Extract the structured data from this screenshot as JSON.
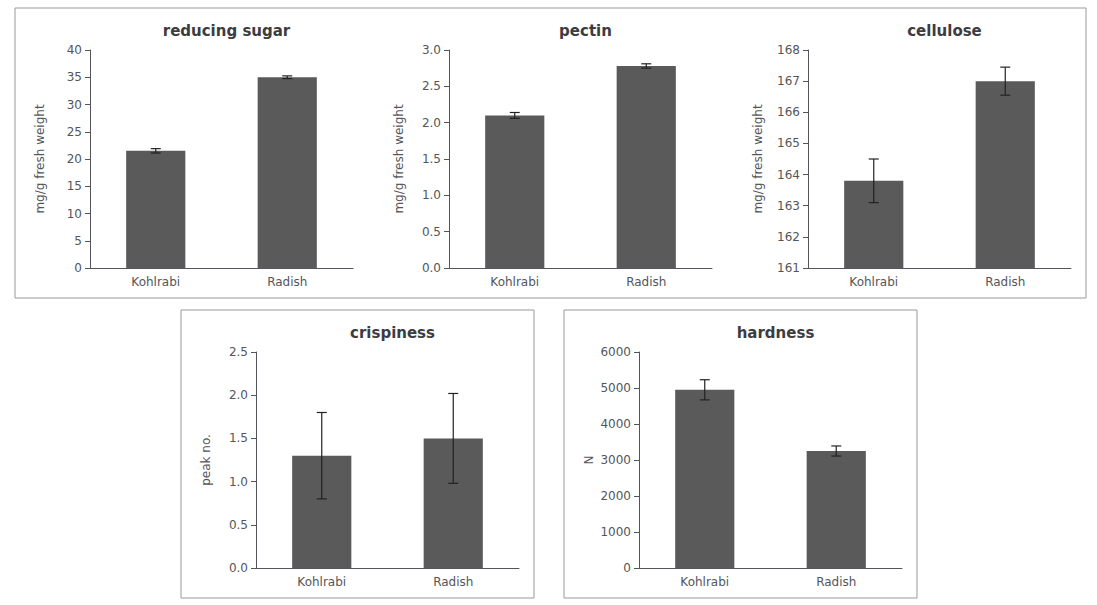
{
  "chart_data": [
    {
      "type": "bar",
      "title": "reducing sugar",
      "ylabel": "mg/g fresh weight",
      "categories": [
        "Kohlrabi",
        "Radish"
      ],
      "values": [
        21.5,
        35.0
      ],
      "errors": [
        0.4,
        0.25
      ],
      "color": "#5a5a5a",
      "ylim": [
        0,
        40
      ],
      "yticks": [
        0,
        5,
        10,
        15,
        20,
        25,
        30,
        35,
        40
      ],
      "grid": false
    },
    {
      "type": "bar",
      "title": "pectin",
      "ylabel": "mg/g fresh weight",
      "categories": [
        "Kohlrabi",
        "Radish"
      ],
      "values": [
        2.1,
        2.78
      ],
      "errors": [
        0.04,
        0.03
      ],
      "color": "#5a5a5a",
      "ylim": [
        0,
        3
      ],
      "yticks": [
        {
          "value": 0,
          "label": "0.0"
        },
        0.5,
        {
          "value": 1.0,
          "label": "1.0"
        },
        1.5,
        {
          "value": 2.0,
          "label": "2.0"
        },
        2.5,
        {
          "value": 3.0,
          "label": "3.0"
        }
      ],
      "grid": false
    },
    {
      "type": "bar",
      "title": "cellulose",
      "ylabel": "mg/g fresh weight",
      "categories": [
        "Kohlrabi",
        "Radish"
      ],
      "values": [
        163.8,
        167.0
      ],
      "errors": [
        0.7,
        0.45
      ],
      "color": "#5a5a5a",
      "ylim": [
        161,
        168
      ],
      "yticks": [
        161,
        162,
        163,
        164,
        165,
        166,
        167,
        168
      ],
      "grid": false
    },
    {
      "type": "bar",
      "title": "crispiness",
      "ylabel": "peak no.",
      "categories": [
        "Kohlrabi",
        "Radish"
      ],
      "values": [
        1.3,
        1.5
      ],
      "errors": [
        0.5,
        0.52
      ],
      "color": "#5a5a5a",
      "ylim": [
        0,
        2.5
      ],
      "yticks": [
        {
          "value": 0,
          "label": "0.0"
        },
        0.5,
        {
          "value": 1.0,
          "label": "1.0"
        },
        1.5,
        {
          "value": 2.0,
          "label": "2.0"
        },
        2.5
      ],
      "grid": false
    },
    {
      "type": "bar",
      "title": "hardness",
      "ylabel": "N",
      "categories": [
        "Kohlrabi",
        "Radish"
      ],
      "values": [
        4950,
        3250
      ],
      "errors": [
        280,
        140
      ],
      "color": "#5a5a5a",
      "ylim": [
        0,
        6000
      ],
      "yticks": [
        0,
        1000,
        2000,
        3000,
        4000,
        5000,
        6000
      ],
      "grid": false
    }
  ]
}
